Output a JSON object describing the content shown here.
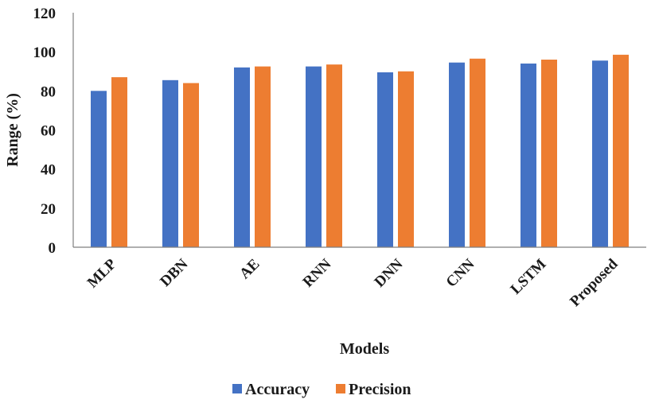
{
  "chart_data": {
    "type": "bar",
    "title": "",
    "xlabel": "Models",
    "ylabel": "Range (%)",
    "ylim": [
      0,
      120
    ],
    "yticks": [
      0,
      20,
      40,
      60,
      80,
      100,
      120
    ],
    "grid": false,
    "legend_position": "bottom",
    "categories": [
      "MLP",
      "DBN",
      "AE",
      "RNN",
      "DNN",
      "CNN",
      "LSTM",
      "Proposed"
    ],
    "series": [
      {
        "name": "Accuracy",
        "color": "#4472C4",
        "values": [
          80,
          85.5,
          92,
          92.5,
          89.5,
          94.5,
          94,
          95.5
        ]
      },
      {
        "name": "Precision",
        "color": "#ED7D31",
        "values": [
          87,
          84,
          92.5,
          93.5,
          90,
          96.5,
          96,
          98.5
        ]
      }
    ]
  }
}
